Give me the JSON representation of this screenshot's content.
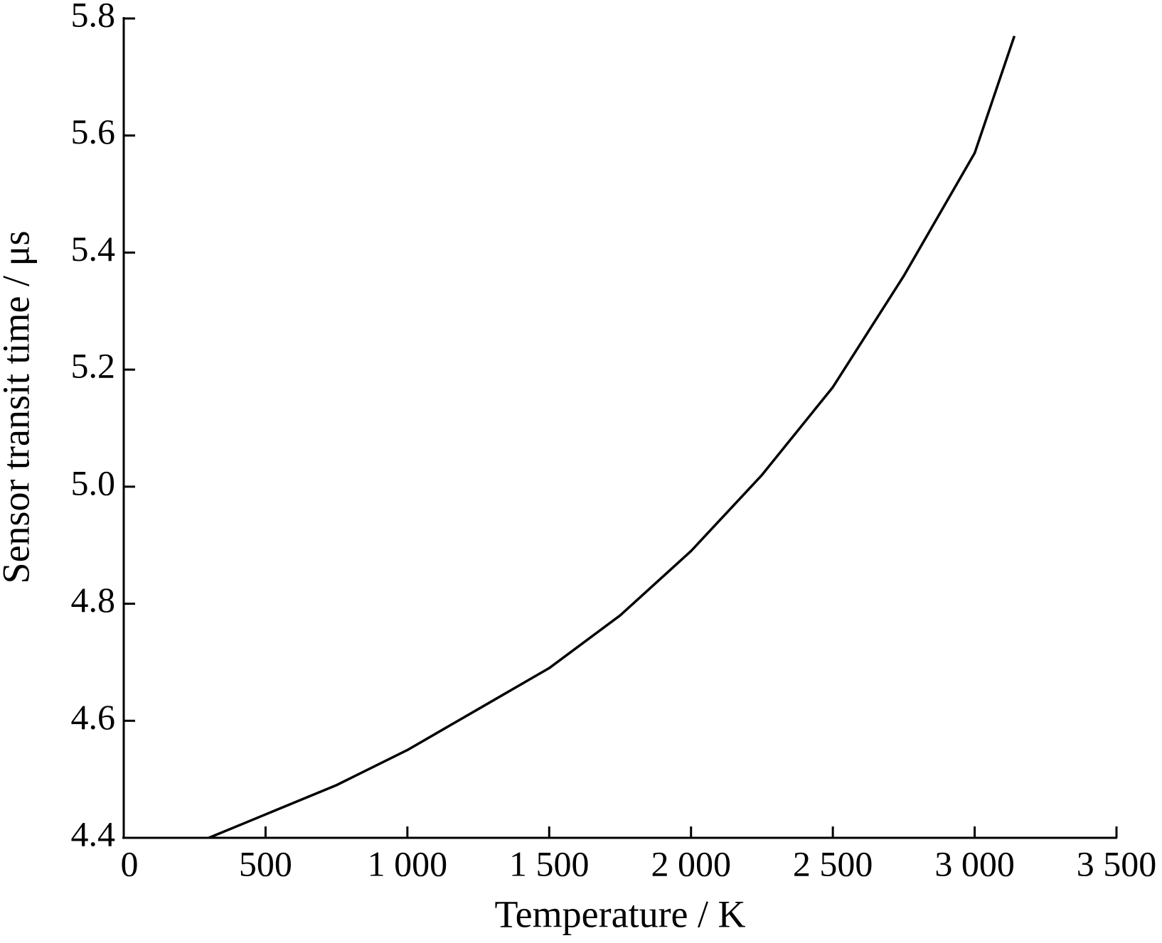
{
  "chart_data": {
    "type": "line",
    "xlabel": "Temperature / K",
    "ylabel": "Sensor transit time / μs",
    "x": [
      300,
      500,
      750,
      1000,
      1250,
      1500,
      1750,
      2000,
      2250,
      2500,
      2750,
      3000,
      3140
    ],
    "series": [
      {
        "color": "#000000",
        "values": [
          4.4,
          4.44,
          4.49,
          4.55,
          4.62,
          4.69,
          4.78,
          4.89,
          5.02,
          5.17,
          5.36,
          5.57,
          5.77
        ]
      }
    ],
    "xlim": [
      0,
      3500
    ],
    "xticks": [
      0,
      500,
      {
        "value": 1000,
        "label": "1 000"
      },
      {
        "value": 1500,
        "label": "1 500"
      },
      {
        "value": 2000,
        "label": "2 000"
      },
      {
        "value": 2500,
        "label": "2 500"
      },
      {
        "value": 3000,
        "label": "3 000"
      },
      {
        "value": 3500,
        "label": "3 500"
      }
    ],
    "ylim": [
      4.4,
      5.8
    ],
    "yticks": [
      4.4,
      4.6,
      4.8,
      {
        "value": 5.0,
        "label": "5.0"
      },
      5.2,
      5.4,
      5.6,
      5.8
    ],
    "grid": false
  }
}
